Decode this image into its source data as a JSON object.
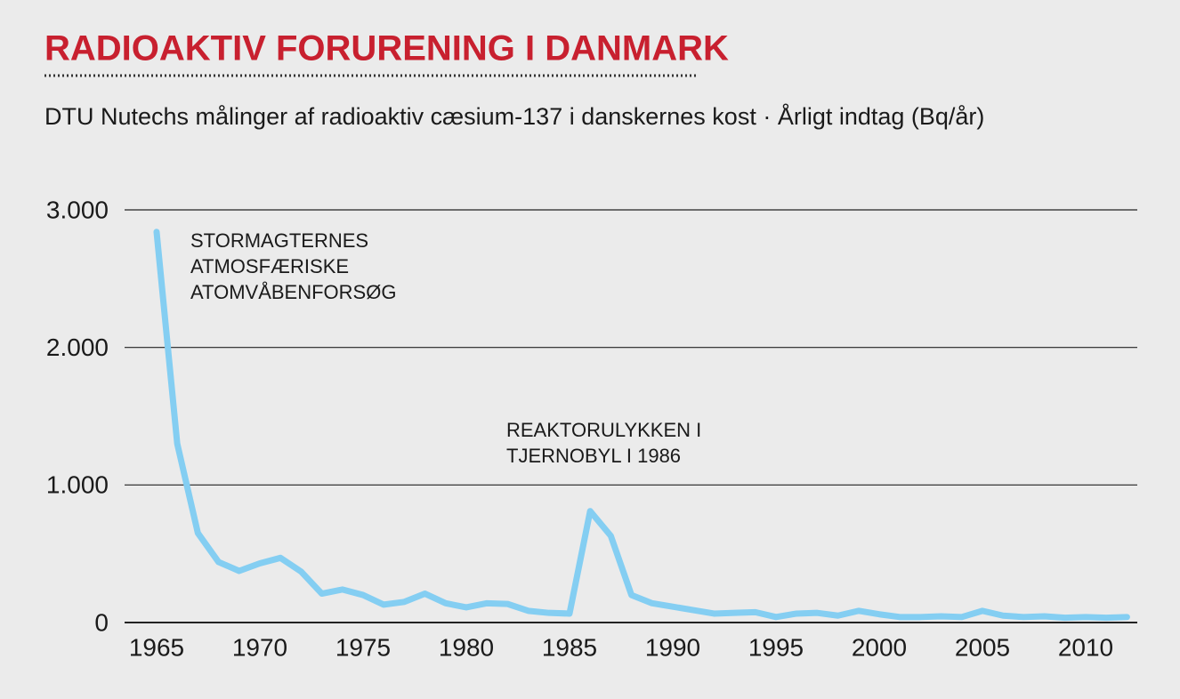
{
  "chart_data": {
    "type": "line",
    "title": "RADIOAKTIV FORURENING I DANMARK",
    "subtitle": "DTU Nutechs målinger af radioaktiv cæsium-137 i danskernes kost · Årligt indtag (Bq/år)",
    "x": [
      1965,
      1966,
      1967,
      1968,
      1969,
      1970,
      1971,
      1972,
      1973,
      1974,
      1975,
      1976,
      1977,
      1978,
      1979,
      1980,
      1981,
      1982,
      1983,
      1984,
      1985,
      1986,
      1987,
      1988,
      1989,
      1990,
      1991,
      1992,
      1993,
      1994,
      1995,
      1996,
      1997,
      1998,
      1999,
      2000,
      2001,
      2002,
      2003,
      2004,
      2005,
      2006,
      2007,
      2008,
      2009,
      2010,
      2011,
      2012
    ],
    "values": [
      2840,
      1300,
      650,
      440,
      375,
      430,
      470,
      370,
      210,
      240,
      200,
      130,
      150,
      210,
      140,
      110,
      140,
      135,
      85,
      70,
      65,
      810,
      630,
      200,
      140,
      115,
      90,
      65,
      70,
      75,
      40,
      65,
      70,
      50,
      85,
      60,
      40,
      40,
      45,
      40,
      85,
      50,
      40,
      45,
      35,
      40,
      35,
      40
    ],
    "color": "#84cef2",
    "xlim": [
      1963.45,
      2012.5
    ],
    "ylim": [
      0,
      3000
    ],
    "xticks": [
      1965,
      1970,
      1975,
      1980,
      1985,
      1990,
      1995,
      2000,
      2005,
      2010
    ],
    "yticks": [
      0,
      {
        "value": 1000,
        "label": "1.000"
      },
      {
        "value": 2000,
        "label": "2.000"
      },
      {
        "value": 3000,
        "label": "3.000"
      }
    ],
    "grid": true,
    "annotations": [
      {
        "lines": [
          "STORMAGTERNES",
          "ATMOSFÆRISKE",
          "ATOMVÅBENFORSØG"
        ]
      },
      {
        "lines": [
          "REAKTORULYKKEN I",
          "TJERNOBYL I 1986"
        ]
      }
    ]
  }
}
